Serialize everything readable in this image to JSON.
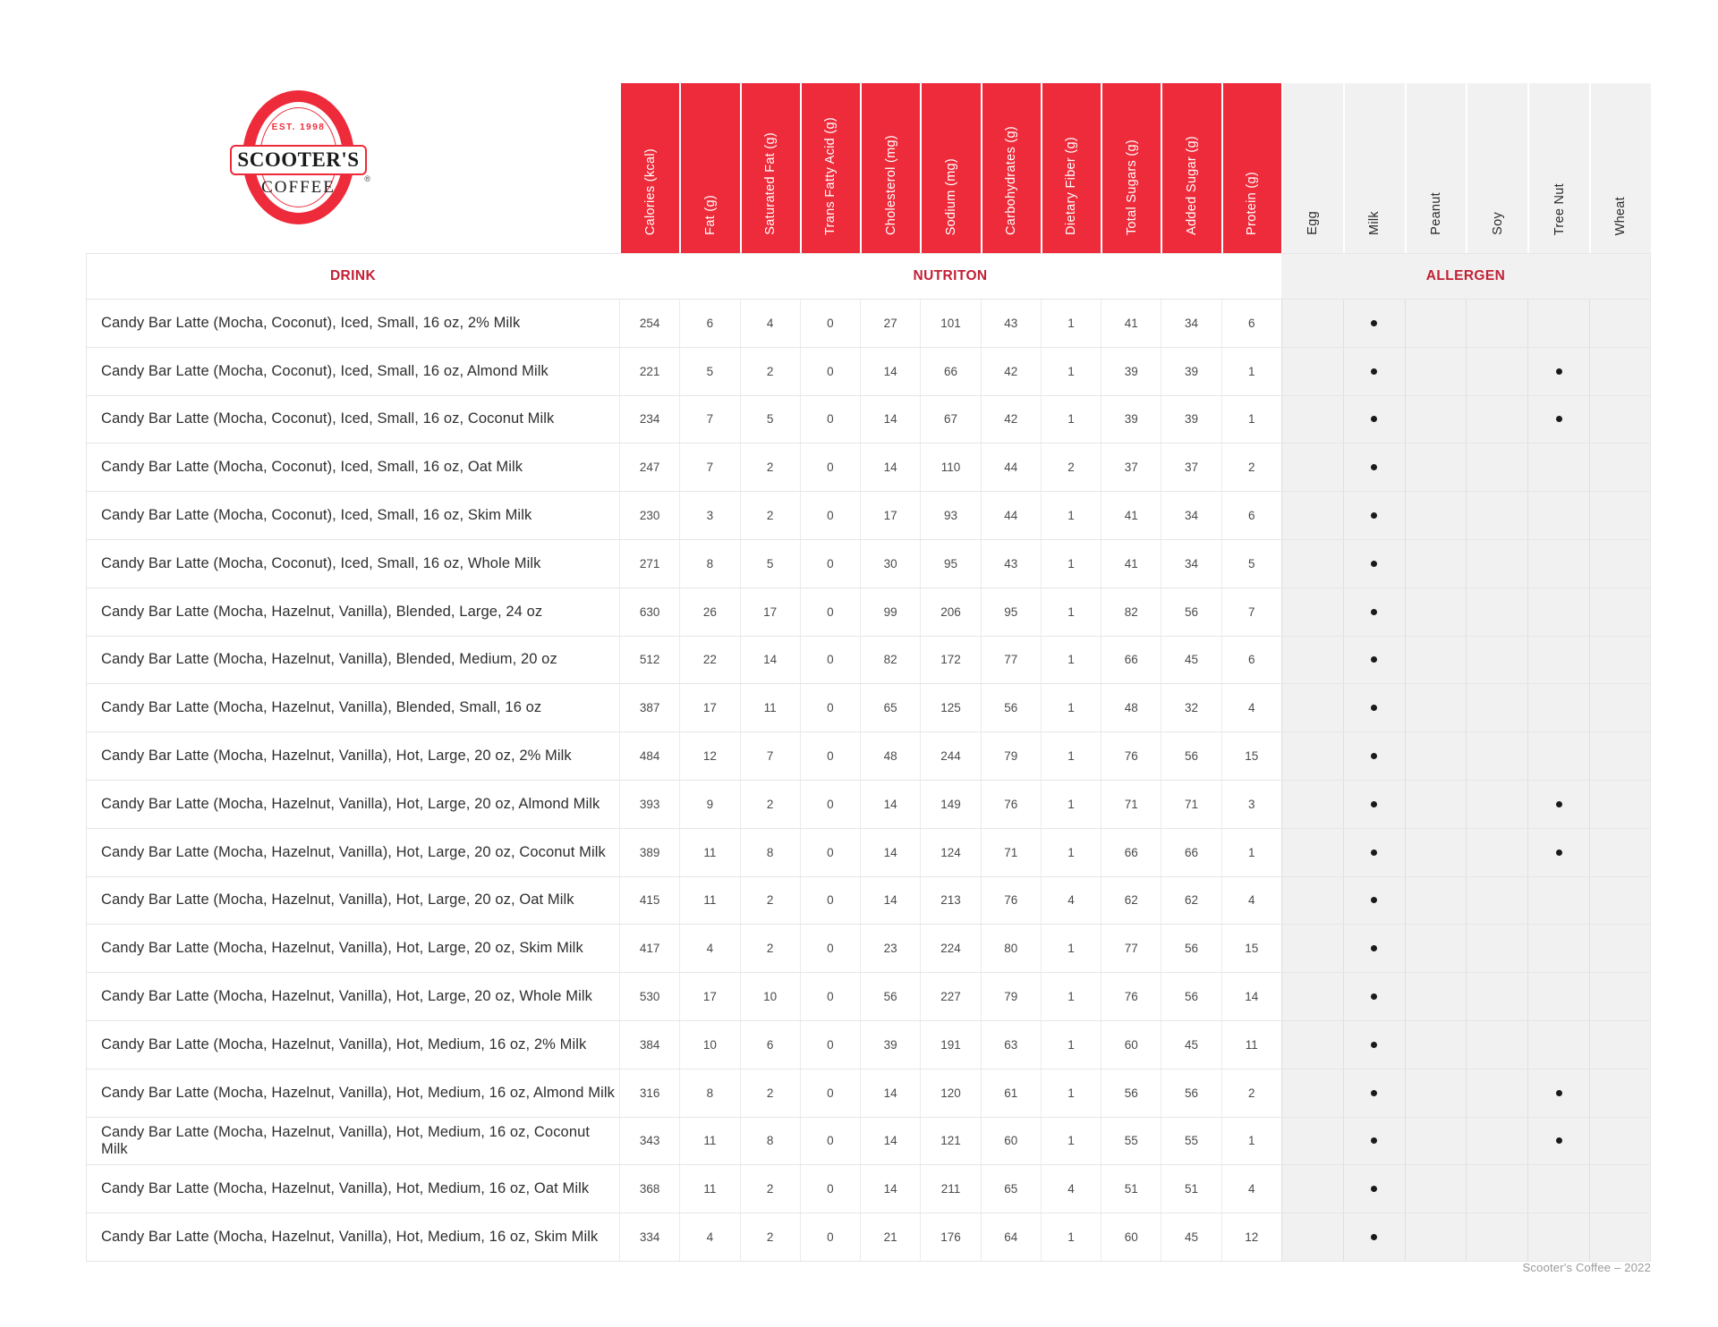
{
  "colors": {
    "brand_red": "#EE2B3A",
    "heading_red": "#C22035",
    "allergen_gray": "#F1F1F1",
    "dot_black": "#1a1a1a"
  },
  "logo": {
    "est": "EST. 1998",
    "name": "SCOOTER'S",
    "coffee": "COFFEE",
    "registered": "®"
  },
  "table": {
    "section_headers": {
      "drink": "DRINK",
      "nutrition": "NUTRITON",
      "allergen": "ALLERGEN"
    },
    "nutrition_columns": [
      "Calories (kcal)",
      "Fat (g)",
      "Saturated Fat (g)",
      "Trans Fatty Acid (g)",
      "Cholesterol (mg)",
      "Sodium (mg)",
      "Carbohydrates (g)",
      "Dietary Fiber (g)",
      "Total Sugars (g)",
      "Added Sugar (g)",
      "Protein (g)"
    ],
    "allergen_columns": [
      "Egg",
      "Milk",
      "Peanut",
      "Soy",
      "Tree Nut",
      "Wheat"
    ],
    "rows": [
      {
        "name": "Candy Bar Latte (Mocha, Coconut), Iced, Small, 16 oz, 2% Milk",
        "nutrition": [
          254,
          6,
          4,
          0,
          27,
          101,
          43,
          1,
          41,
          34,
          6
        ],
        "allergens": [
          "Milk"
        ]
      },
      {
        "name": "Candy Bar Latte (Mocha, Coconut), Iced, Small, 16 oz, Almond Milk",
        "nutrition": [
          221,
          5,
          2,
          0,
          14,
          66,
          42,
          1,
          39,
          39,
          1
        ],
        "allergens": [
          "Milk",
          "Tree Nut"
        ]
      },
      {
        "name": "Candy Bar Latte (Mocha, Coconut), Iced, Small, 16 oz, Coconut Milk",
        "nutrition": [
          234,
          7,
          5,
          0,
          14,
          67,
          42,
          1,
          39,
          39,
          1
        ],
        "allergens": [
          "Milk",
          "Tree Nut"
        ]
      },
      {
        "name": "Candy Bar Latte (Mocha, Coconut), Iced, Small, 16 oz, Oat Milk",
        "nutrition": [
          247,
          7,
          2,
          0,
          14,
          110,
          44,
          2,
          37,
          37,
          2
        ],
        "allergens": [
          "Milk"
        ]
      },
      {
        "name": "Candy Bar Latte (Mocha, Coconut), Iced, Small, 16 oz, Skim Milk",
        "nutrition": [
          230,
          3,
          2,
          0,
          17,
          93,
          44,
          1,
          41,
          34,
          6
        ],
        "allergens": [
          "Milk"
        ]
      },
      {
        "name": "Candy Bar Latte (Mocha, Coconut), Iced, Small, 16 oz, Whole Milk",
        "nutrition": [
          271,
          8,
          5,
          0,
          30,
          95,
          43,
          1,
          41,
          34,
          5
        ],
        "allergens": [
          "Milk"
        ]
      },
      {
        "name": "Candy Bar Latte (Mocha, Hazelnut, Vanilla), Blended, Large, 24 oz",
        "nutrition": [
          630,
          26,
          17,
          0,
          99,
          206,
          95,
          1,
          82,
          56,
          7
        ],
        "allergens": [
          "Milk"
        ]
      },
      {
        "name": "Candy Bar Latte (Mocha, Hazelnut, Vanilla), Blended, Medium, 20 oz",
        "nutrition": [
          512,
          22,
          14,
          0,
          82,
          172,
          77,
          1,
          66,
          45,
          6
        ],
        "allergens": [
          "Milk"
        ]
      },
      {
        "name": "Candy Bar Latte (Mocha, Hazelnut, Vanilla), Blended, Small, 16 oz",
        "nutrition": [
          387,
          17,
          11,
          0,
          65,
          125,
          56,
          1,
          48,
          32,
          4
        ],
        "allergens": [
          "Milk"
        ]
      },
      {
        "name": "Candy Bar Latte (Mocha, Hazelnut, Vanilla), Hot, Large, 20 oz, 2% Milk",
        "nutrition": [
          484,
          12,
          7,
          0,
          48,
          244,
          79,
          1,
          76,
          56,
          15
        ],
        "allergens": [
          "Milk"
        ]
      },
      {
        "name": "Candy Bar Latte (Mocha, Hazelnut, Vanilla), Hot, Large, 20 oz, Almond Milk",
        "nutrition": [
          393,
          9,
          2,
          0,
          14,
          149,
          76,
          1,
          71,
          71,
          3
        ],
        "allergens": [
          "Milk",
          "Tree Nut"
        ]
      },
      {
        "name": "Candy Bar Latte (Mocha, Hazelnut, Vanilla), Hot, Large, 20 oz, Coconut Milk",
        "nutrition": [
          389,
          11,
          8,
          0,
          14,
          124,
          71,
          1,
          66,
          66,
          1
        ],
        "allergens": [
          "Milk",
          "Tree Nut"
        ]
      },
      {
        "name": "Candy Bar Latte (Mocha, Hazelnut, Vanilla), Hot, Large, 20 oz, Oat Milk",
        "nutrition": [
          415,
          11,
          2,
          0,
          14,
          213,
          76,
          4,
          62,
          62,
          4
        ],
        "allergens": [
          "Milk"
        ]
      },
      {
        "name": "Candy Bar Latte (Mocha, Hazelnut, Vanilla), Hot, Large, 20 oz, Skim Milk",
        "nutrition": [
          417,
          4,
          2,
          0,
          23,
          224,
          80,
          1,
          77,
          56,
          15
        ],
        "allergens": [
          "Milk"
        ]
      },
      {
        "name": "Candy Bar Latte (Mocha, Hazelnut, Vanilla), Hot, Large, 20 oz, Whole Milk",
        "nutrition": [
          530,
          17,
          10,
          0,
          56,
          227,
          79,
          1,
          76,
          56,
          14
        ],
        "allergens": [
          "Milk"
        ]
      },
      {
        "name": "Candy Bar Latte (Mocha, Hazelnut, Vanilla), Hot, Medium, 16 oz, 2% Milk",
        "nutrition": [
          384,
          10,
          6,
          0,
          39,
          191,
          63,
          1,
          60,
          45,
          11
        ],
        "allergens": [
          "Milk"
        ]
      },
      {
        "name": "Candy Bar Latte (Mocha, Hazelnut, Vanilla), Hot, Medium, 16 oz, Almond Milk",
        "nutrition": [
          316,
          8,
          2,
          0,
          14,
          120,
          61,
          1,
          56,
          56,
          2
        ],
        "allergens": [
          "Milk",
          "Tree Nut"
        ]
      },
      {
        "name": "Candy Bar Latte (Mocha, Hazelnut, Vanilla), Hot, Medium, 16 oz, Coconut Milk",
        "nutrition": [
          343,
          11,
          8,
          0,
          14,
          121,
          60,
          1,
          55,
          55,
          1
        ],
        "allergens": [
          "Milk",
          "Tree Nut"
        ]
      },
      {
        "name": "Candy Bar Latte (Mocha, Hazelnut, Vanilla), Hot, Medium, 16 oz, Oat Milk",
        "nutrition": [
          368,
          11,
          2,
          0,
          14,
          211,
          65,
          4,
          51,
          51,
          4
        ],
        "allergens": [
          "Milk"
        ]
      },
      {
        "name": "Candy Bar Latte (Mocha, Hazelnut, Vanilla), Hot, Medium, 16 oz, Skim Milk",
        "nutrition": [
          334,
          4,
          2,
          0,
          21,
          176,
          64,
          1,
          60,
          45,
          12
        ],
        "allergens": [
          "Milk"
        ]
      }
    ]
  },
  "footer": {
    "credit": "Scooter's Coffee – 2022"
  }
}
